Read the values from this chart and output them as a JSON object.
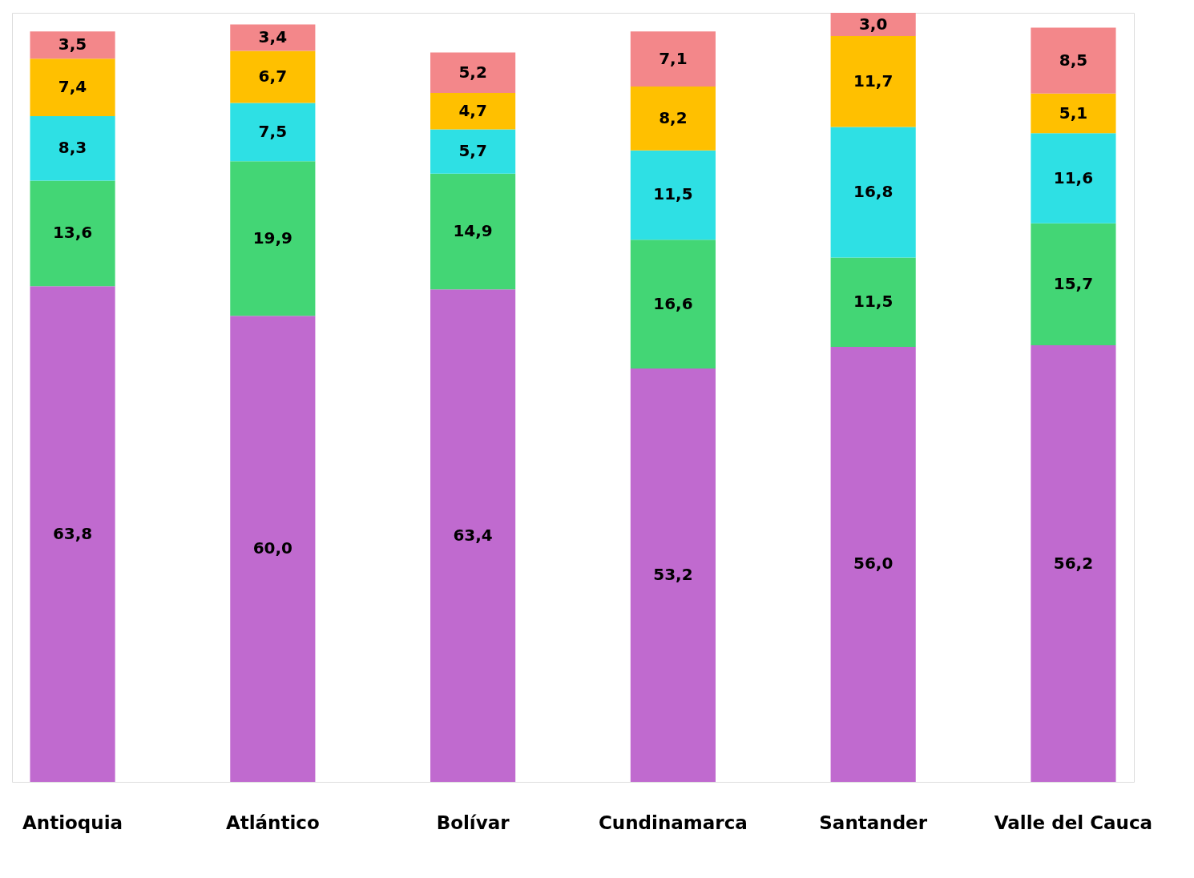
{
  "chart_data": {
    "type": "bar",
    "stacked": true,
    "tick_labels": "x",
    "grid": false,
    "categories": [
      "Antioquia",
      "Atlántico",
      "Bolívar",
      "Cundinamarca",
      "Santander",
      "Valle del Cauca"
    ],
    "series": [
      {
        "color": "#c06acf",
        "values": [
          63.8,
          60.0,
          63.4,
          53.2,
          56.0,
          56.2
        ],
        "value_labels": [
          "63,8",
          "60,0",
          "63,4",
          "53,2",
          "56,0",
          "56,2"
        ]
      },
      {
        "color": "#43d675",
        "values": [
          13.6,
          19.9,
          14.9,
          16.6,
          11.5,
          15.7
        ],
        "value_labels": [
          "13,6",
          "19,9",
          "14,9",
          "16,6",
          "11,5",
          "15,7"
        ]
      },
      {
        "color": "#2ee0e4",
        "values": [
          8.3,
          7.5,
          5.7,
          11.5,
          16.8,
          11.6
        ],
        "value_labels": [
          "8,3",
          "7,5",
          "5,7",
          "11,5",
          "16,8",
          "11,6"
        ]
      },
      {
        "color": "#ffc000",
        "values": [
          7.4,
          6.7,
          4.7,
          8.2,
          11.7,
          5.1
        ],
        "value_labels": [
          "7,4",
          "6,7",
          "4,7",
          "8,2",
          "11,7",
          "5,1"
        ]
      },
      {
        "color": "#f3878a",
        "values": [
          3.5,
          3.4,
          5.2,
          7.1,
          3.0,
          8.5
        ],
        "value_labels": [
          "3,5",
          "3,4",
          "5,2",
          "7,1",
          "3,0",
          "8,5"
        ]
      }
    ]
  }
}
